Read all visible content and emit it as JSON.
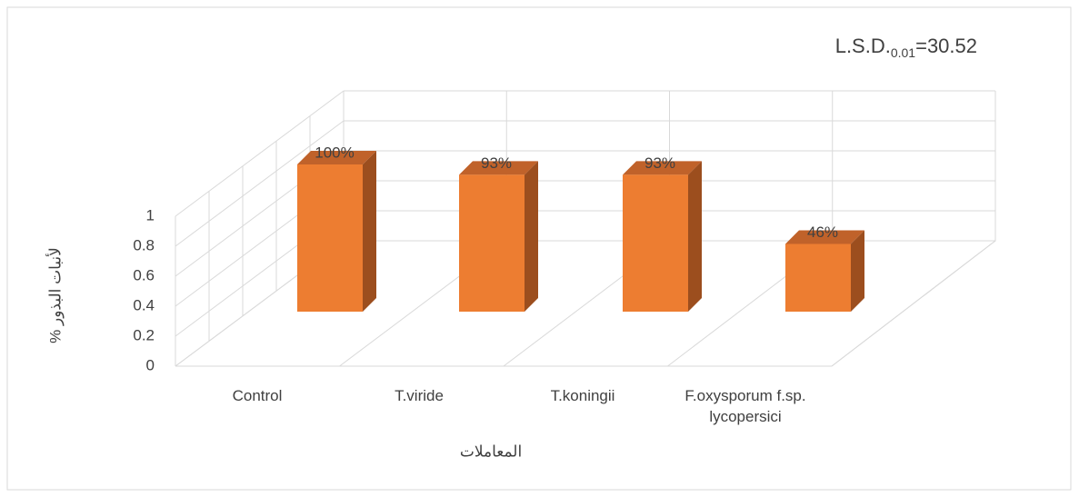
{
  "chart_data": {
    "type": "bar3d",
    "annotation": {
      "text": "L.S.D.",
      "sub": "0.01",
      "rest": "=30.52"
    },
    "ylabel": "% لأنبات البذور",
    "xlabel": "المعاملات",
    "categories": [
      "Control",
      "T.viride",
      "T.koningii",
      "F.oxysporum f.sp. lycopersici"
    ],
    "values": [
      1,
      0.93,
      0.93,
      0.46
    ],
    "value_labels": [
      "100%",
      "93%",
      "93%",
      "46%"
    ],
    "color": "#ED7D31",
    "ylim": [
      0,
      1
    ],
    "yticks": [
      0,
      0.2,
      0.4,
      0.6,
      0.8,
      1
    ],
    "grid": true
  }
}
